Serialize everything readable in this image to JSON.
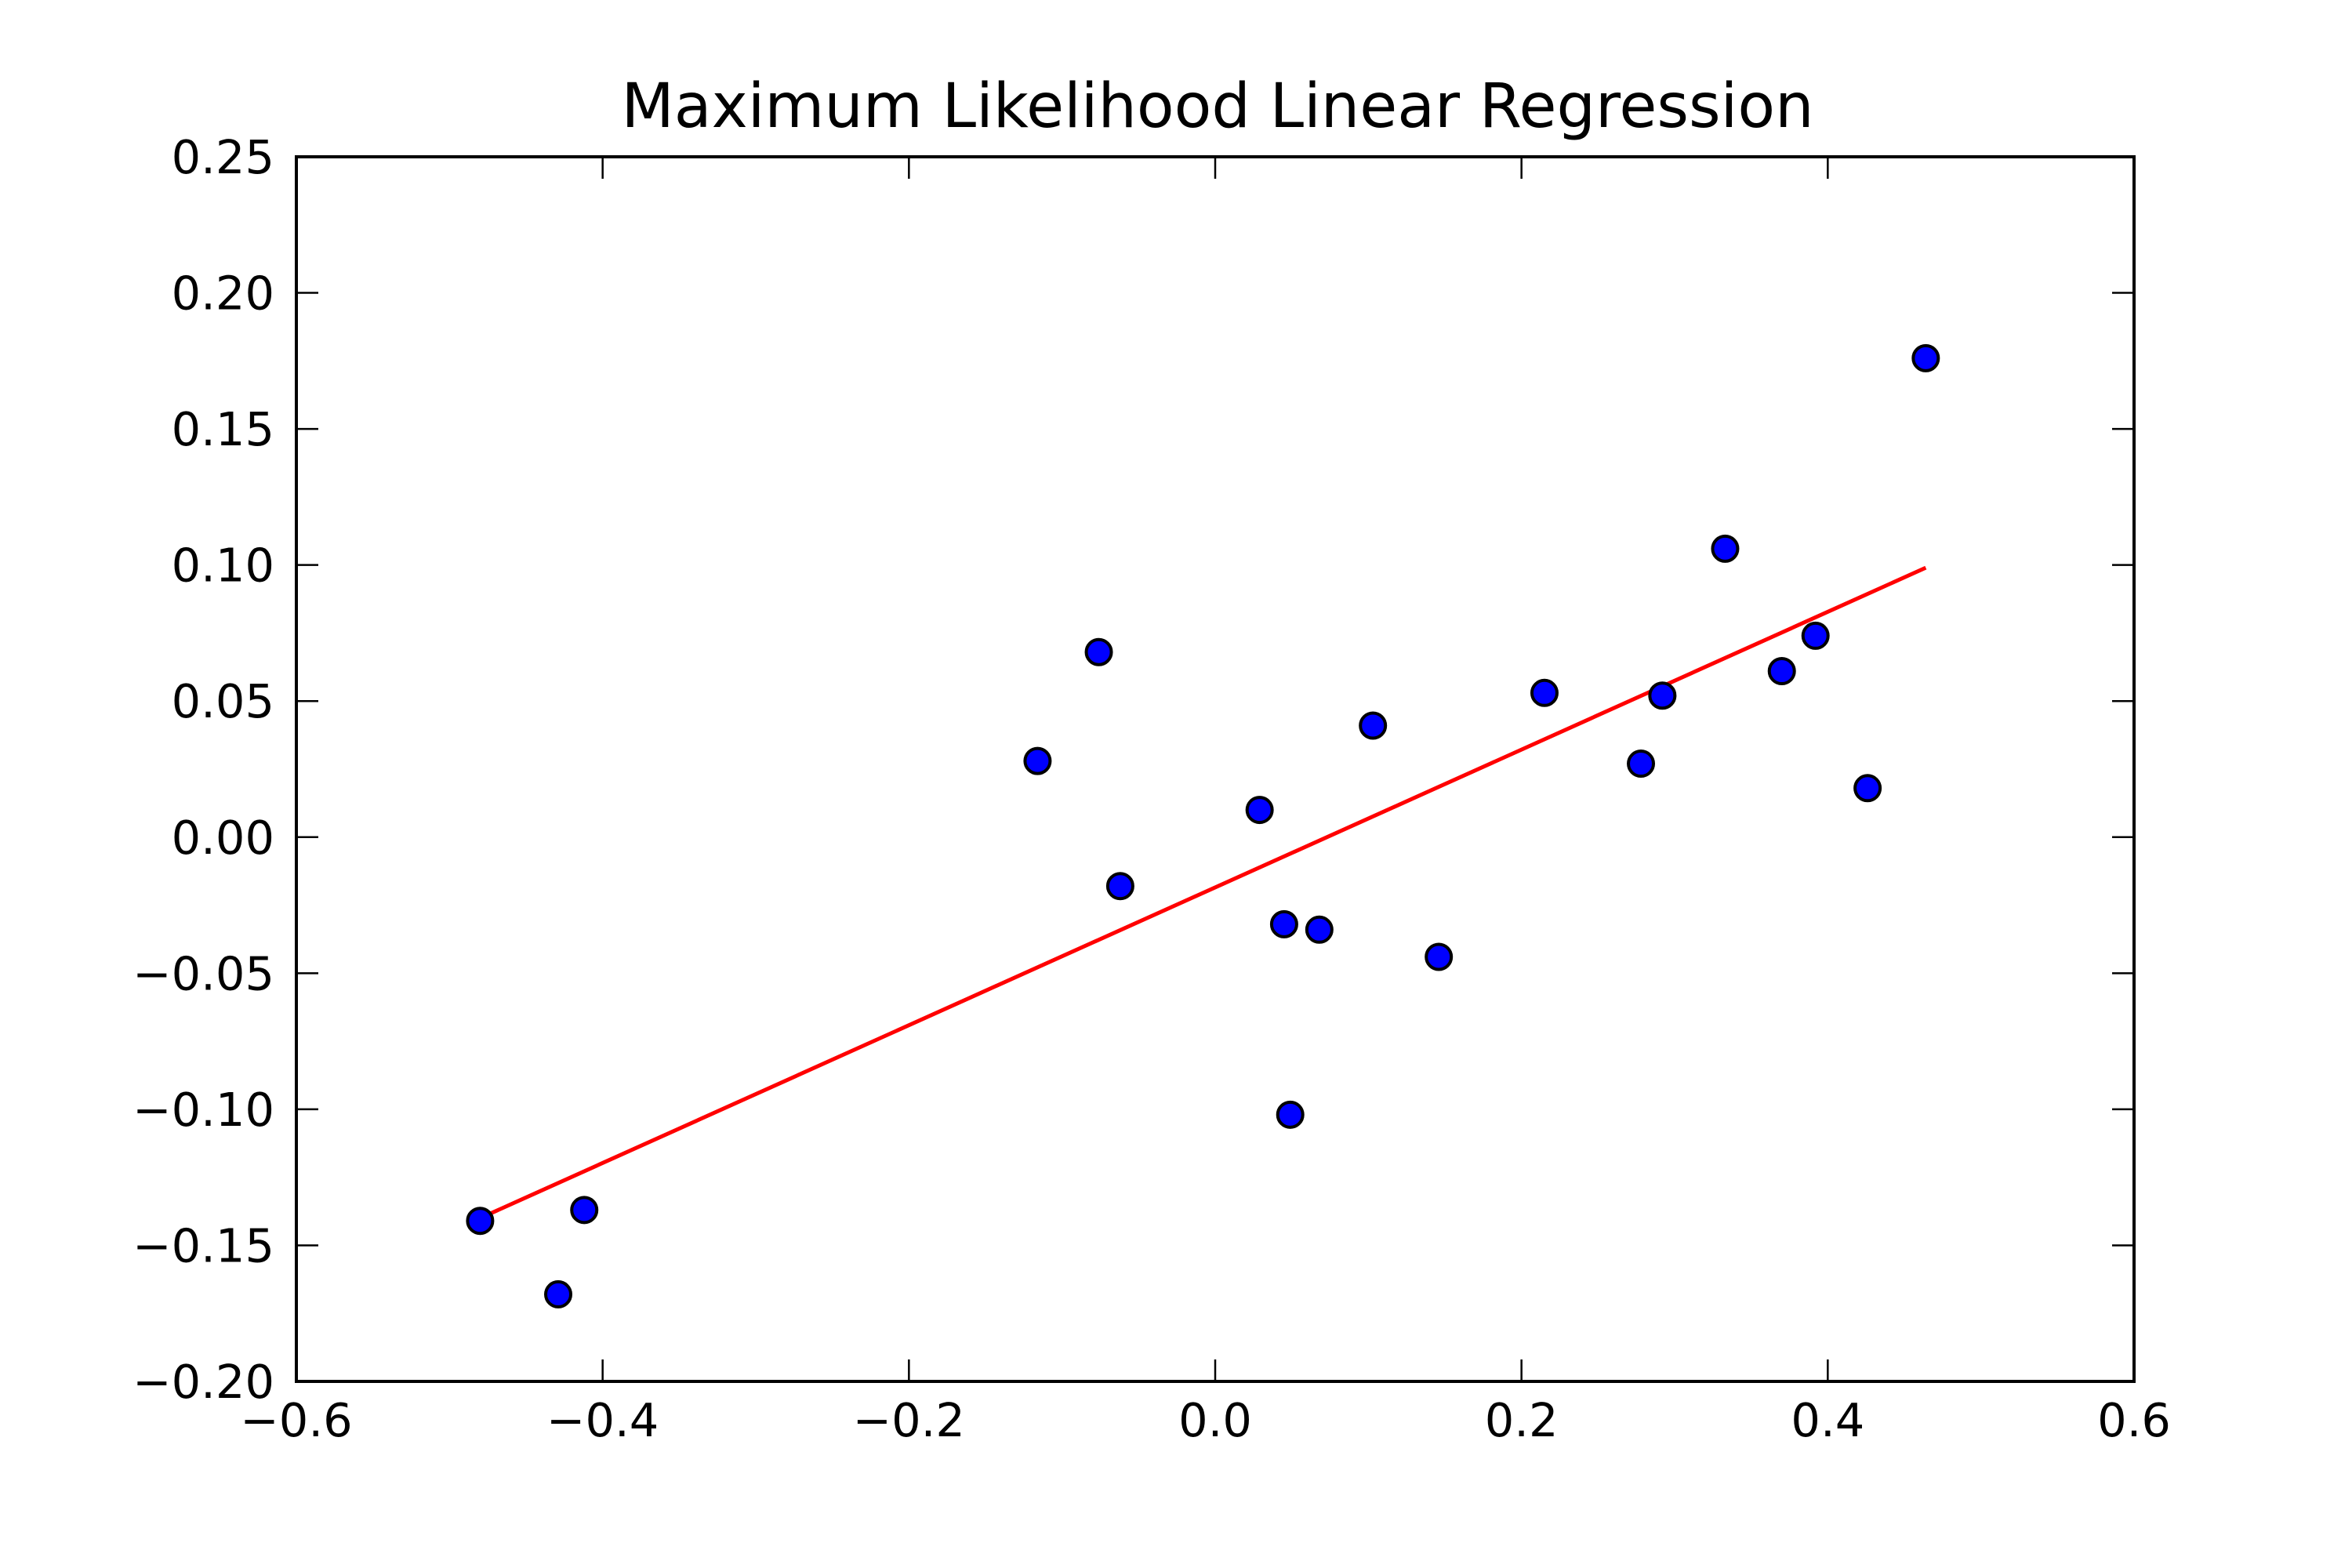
{
  "chart_data": {
    "type": "scatter",
    "title": "Maximum Likelihood Linear Regression",
    "xlabel": "",
    "ylabel": "",
    "xlim": [
      -0.6,
      0.6
    ],
    "ylim": [
      -0.2,
      0.25
    ],
    "xticks": [
      -0.6,
      -0.4,
      -0.2,
      0.0,
      0.2,
      0.4,
      0.6
    ],
    "xtick_labels": [
      "−0.6",
      "−0.4",
      "−0.2",
      "0.0",
      "0.2",
      "0.4",
      "0.6"
    ],
    "yticks": [
      -0.2,
      -0.15,
      -0.1,
      -0.05,
      0.0,
      0.05,
      0.1,
      0.15,
      0.2,
      0.25
    ],
    "ytick_labels": [
      "−0.20",
      "−0.15",
      "−0.10",
      "−0.05",
      "0.00",
      "0.05",
      "0.10",
      "0.15",
      "0.20",
      "0.25"
    ],
    "grid": false,
    "series": [
      {
        "type": "scatter",
        "color": "#0000ff",
        "edge_color": "#000000",
        "points": [
          {
            "x": -0.48,
            "y": -0.141
          },
          {
            "x": -0.429,
            "y": -0.168
          },
          {
            "x": -0.412,
            "y": -0.137
          },
          {
            "x": -0.116,
            "y": 0.028
          },
          {
            "x": -0.076,
            "y": 0.068
          },
          {
            "x": -0.062,
            "y": -0.018
          },
          {
            "x": 0.029,
            "y": 0.01
          },
          {
            "x": 0.045,
            "y": -0.032
          },
          {
            "x": 0.049,
            "y": -0.102
          },
          {
            "x": 0.068,
            "y": -0.034
          },
          {
            "x": 0.103,
            "y": 0.041
          },
          {
            "x": 0.146,
            "y": -0.044
          },
          {
            "x": 0.215,
            "y": 0.053
          },
          {
            "x": 0.278,
            "y": 0.027
          },
          {
            "x": 0.292,
            "y": 0.052
          },
          {
            "x": 0.333,
            "y": 0.106
          },
          {
            "x": 0.37,
            "y": 0.061
          },
          {
            "x": 0.392,
            "y": 0.074
          },
          {
            "x": 0.426,
            "y": 0.018
          },
          {
            "x": 0.464,
            "y": 0.176
          }
        ]
      },
      {
        "type": "line",
        "color": "#ff0000",
        "points": [
          {
            "x": -0.48,
            "y": -0.14
          },
          {
            "x": 0.464,
            "y": 0.099
          }
        ]
      }
    ]
  }
}
